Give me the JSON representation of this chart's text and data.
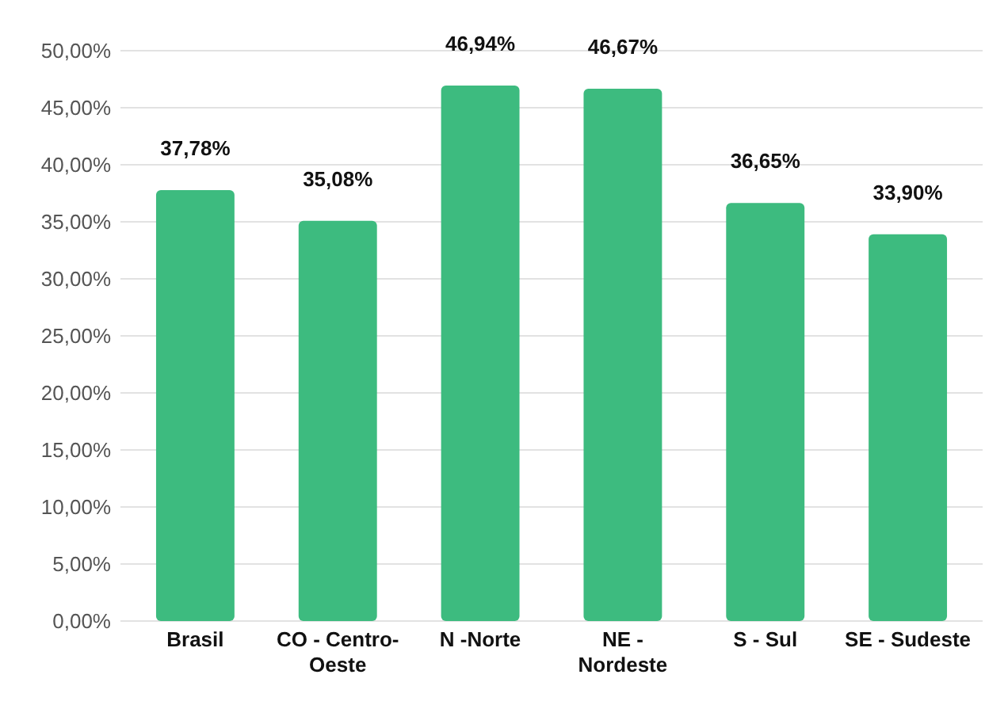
{
  "chart_data": {
    "type": "bar",
    "categories": [
      "Brasil",
      "CO - Centro-Oeste",
      "N -Norte",
      "NE - Nordeste",
      "S - Sul",
      "SE - Sudeste"
    ],
    "values": [
      37.78,
      35.08,
      46.94,
      46.67,
      36.65,
      33.9
    ],
    "value_labels": [
      "37,78%",
      "35,08%",
      "46,94%",
      "46,67%",
      "36,65%",
      "33,90%"
    ],
    "color": "#3dbb7f",
    "ylim": [
      0,
      50
    ],
    "yticks": [
      {
        "value": 0,
        "label": "0,00%"
      },
      {
        "value": 5,
        "label": "5,00%"
      },
      {
        "value": 10,
        "label": "10,00%"
      },
      {
        "value": 15,
        "label": "15,00%"
      },
      {
        "value": 20,
        "label": "20,00%"
      },
      {
        "value": 25,
        "label": "25,00%"
      },
      {
        "value": 30,
        "label": "30,00%"
      },
      {
        "value": 35,
        "label": "35,00%"
      },
      {
        "value": 40,
        "label": "40,00%"
      },
      {
        "value": 45,
        "label": "45,00%"
      },
      {
        "value": 50,
        "label": "50,00%"
      }
    ],
    "grid": "y"
  }
}
